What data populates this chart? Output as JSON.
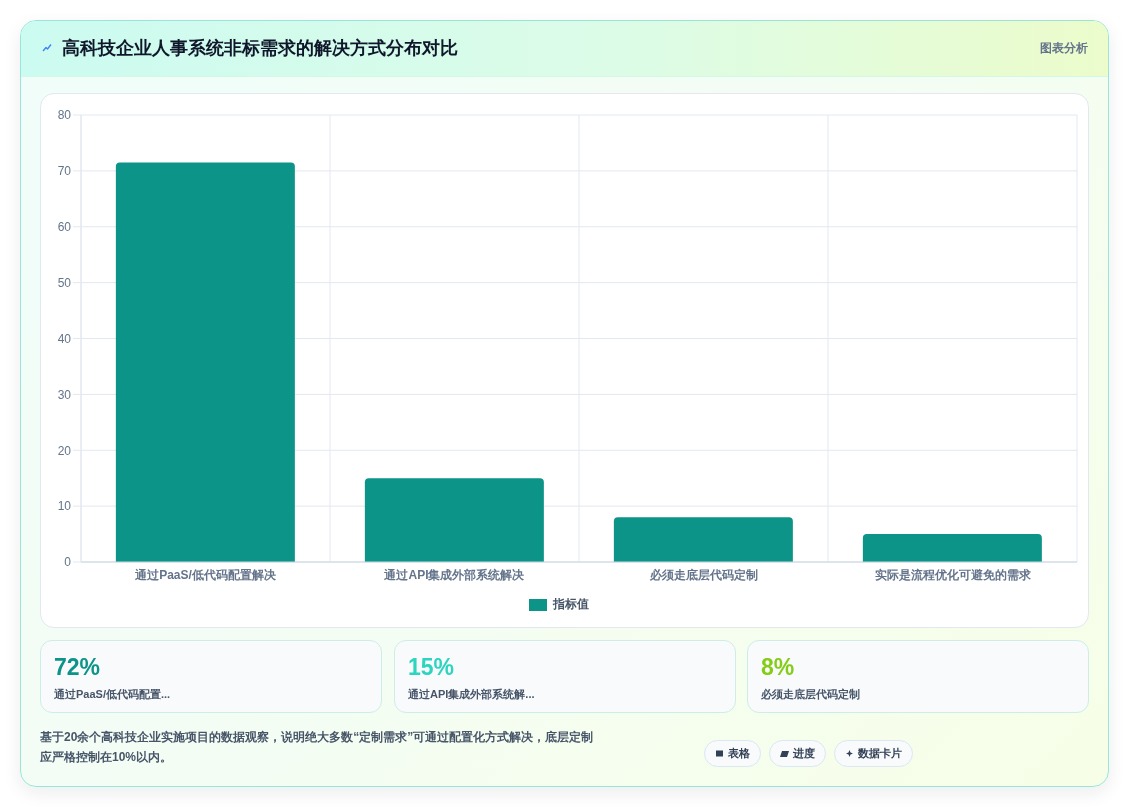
{
  "chart_data": {
    "type": "bar",
    "title": "高科技企业人事系统非标需求的解决方式分布对比",
    "categories": [
      "通过PaaS/低代码配置解决",
      "通过API集成外部系统解决",
      "必须走底层代码定制",
      "实际是流程优化可避免的需求"
    ],
    "series": [
      {
        "name": "指标值",
        "color": "#0d9488",
        "values": [
          71.5,
          15,
          8,
          5
        ]
      }
    ],
    "ylim": [
      0,
      80
    ],
    "yticks": [
      0,
      10,
      20,
      30,
      40,
      50,
      60,
      70,
      80
    ],
    "grid": true,
    "legend": "bottom",
    "annotations": [
      "图表分析",
      "72%",
      "通过PaaS/低代码配置...",
      "15%",
      "通过API集成外部系统解...",
      "8%",
      "必须走底层代码定制",
      "基于20余个高科技企业实施项目的数据观察，说明绝大多数“定制需求”可通过配置化方式解决，底层定制应严格控制在10%以内。",
      "表格",
      "进度",
      "数据卡片"
    ]
  }
}
